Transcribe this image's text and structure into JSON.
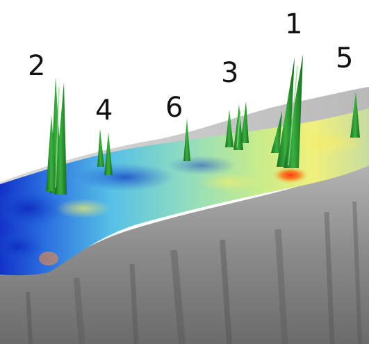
{
  "scene": {
    "labels": [
      {
        "id": "2",
        "text": "2"
      },
      {
        "id": "4",
        "text": "4"
      },
      {
        "id": "6",
        "text": "6"
      },
      {
        "id": "3",
        "text": "3"
      },
      {
        "id": "1",
        "text": "1"
      },
      {
        "id": "5",
        "text": "5"
      }
    ],
    "colors": {
      "background": "#ffffff",
      "surface_gray": "#8a8a8a",
      "surface_gray_dark": "#5c5c5c",
      "heatmap_blue": "#1a3fd0",
      "heatmap_cyan": "#49c6e8",
      "heatmap_green": "#9fe27d",
      "heatmap_yellow": "#f6f07a",
      "hotspot_red": "#ef3b1c",
      "spike_green": "#1f8a2a",
      "spike_highlight": "#6ed36f"
    }
  }
}
